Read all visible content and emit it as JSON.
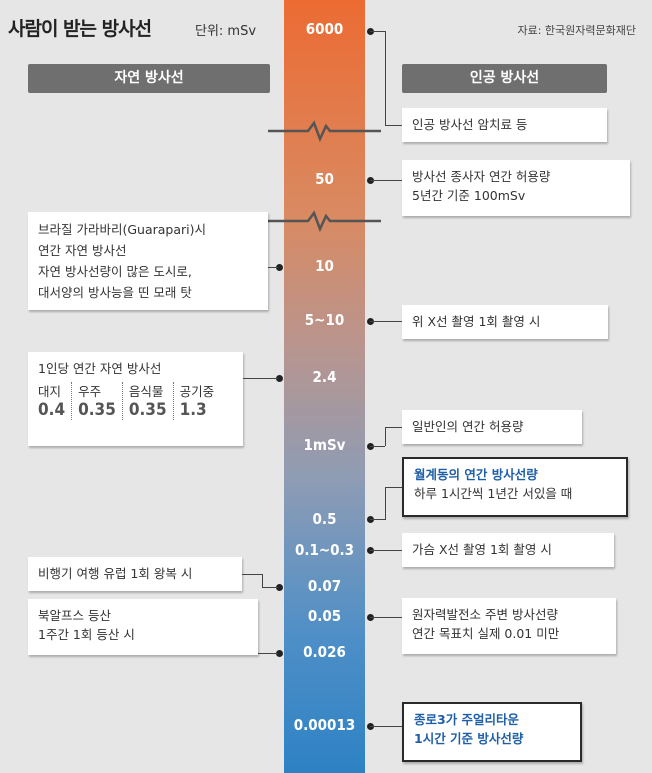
{
  "header": {
    "title": "사람이 받는 방사선",
    "unit": "단위: mSv",
    "source": "자료: 한국원자력문화재단"
  },
  "categories": {
    "left": "자연 방사선",
    "right": "인공 방사선"
  },
  "scale": [
    "6000",
    "50",
    "10",
    "5~10",
    "2.4",
    "1mSv",
    "0.5",
    "0.1~0.3",
    "0.07",
    "0.05",
    "0.026",
    "0.00013"
  ],
  "right_items": [
    {
      "line1": "인공 방사선  암치료 등",
      "line2": ""
    },
    {
      "line1": "방사선 종사자 연간 허용량",
      "line2": "5년간 기준 100mSv"
    },
    {
      "line1": "위 X선 촬영  1회 촬영 시",
      "line2": ""
    },
    {
      "line1": "일반인의 연간 허용량",
      "line2": ""
    },
    {
      "line1": "월계동의 연간 방사선량",
      "line2": "하루 1시간씩 1년간 서있을 때"
    },
    {
      "line1": "가슴 X선 촬영  1회 촬영 시",
      "line2": ""
    },
    {
      "line1": "원자력발전소 주변 방사선량",
      "line2": "연간 목표치  실제 0.01 미만"
    },
    {
      "line1": "종로3가 주얼리타운",
      "line2": "1시간 기준  방사선량"
    }
  ],
  "left_items": {
    "guarapari": [
      "브라질 가라바리(Guarapari)시",
      "연간 자연 방사선",
      "자연 방사선량이 많은 도시로,",
      "대서양의 방사능을 띤 모래 탓"
    ],
    "per_capita": {
      "title": "1인당 연간 자연 방사선",
      "columns": [
        {
          "label": "대지",
          "value": "0.4"
        },
        {
          "label": "우주",
          "value": "0.35"
        },
        {
          "label": "음식물",
          "value": "0.35"
        },
        {
          "label": "공기중",
          "value": "1.3"
        }
      ]
    },
    "flight": "비행기 여행  유럽 1회 왕복 시",
    "alps": [
      "북알프스 등산",
      "1주간 1회 등산 시"
    ]
  },
  "colors": {
    "bar_top": "#ec6b33",
    "bar_bottom": "#2d82c4",
    "highlight": "#1f5fa8"
  }
}
